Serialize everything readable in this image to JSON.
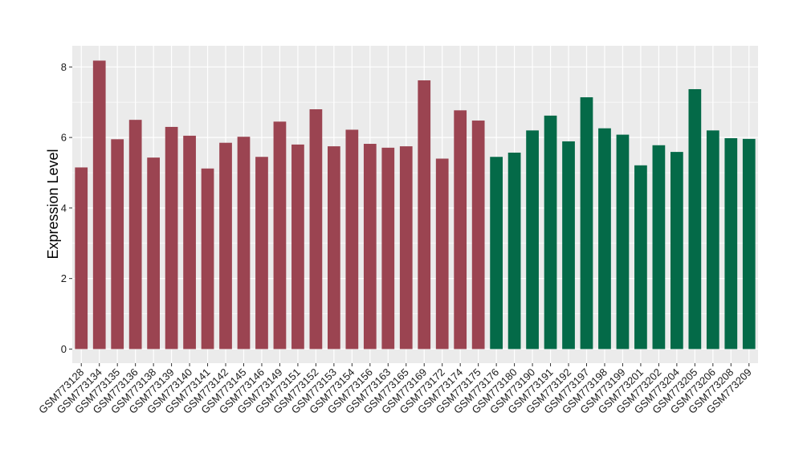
{
  "chart_data": {
    "type": "bar",
    "title": "",
    "xlabel": "",
    "ylabel": "Expression Level",
    "ylim": [
      -0.4,
      8.6
    ],
    "yticks": [
      0,
      2,
      4,
      6,
      8
    ],
    "grid": true,
    "legend": "none",
    "panel_background": "#ebebeb",
    "grid_color": "#ffffff",
    "categories": [
      "GSM773128",
      "GSM773134",
      "GSM773135",
      "GSM773136",
      "GSM773138",
      "GSM773139",
      "GSM773140",
      "GSM773141",
      "GSM773142",
      "GSM773145",
      "GSM773146",
      "GSM773149",
      "GSM773151",
      "GSM773152",
      "GSM773153",
      "GSM773154",
      "GSM773156",
      "GSM773163",
      "GSM773165",
      "GSM773169",
      "GSM773172",
      "GSM773174",
      "GSM773175",
      "GSM773176",
      "GSM773180",
      "GSM773190",
      "GSM773191",
      "GSM773192",
      "GSM773197",
      "GSM773198",
      "GSM773199",
      "GSM773201",
      "GSM773202",
      "GSM773204",
      "GSM773205",
      "GSM773206",
      "GSM773208",
      "GSM773209"
    ],
    "values": [
      5.15,
      8.18,
      5.95,
      6.5,
      5.43,
      6.3,
      6.05,
      5.12,
      5.85,
      6.02,
      5.45,
      6.45,
      5.8,
      6.8,
      5.75,
      6.22,
      5.82,
      5.71,
      5.75,
      7.62,
      5.4,
      6.77,
      6.48,
      5.45,
      5.57,
      6.2,
      6.62,
      5.89,
      7.14,
      6.26,
      6.08,
      5.21,
      5.78,
      5.59,
      7.37,
      6.2,
      5.98,
      5.96
    ],
    "bar_colors": [
      "#9b4451",
      "#9b4451",
      "#9b4451",
      "#9b4451",
      "#9b4451",
      "#9b4451",
      "#9b4451",
      "#9b4451",
      "#9b4451",
      "#9b4451",
      "#9b4451",
      "#9b4451",
      "#9b4451",
      "#9b4451",
      "#9b4451",
      "#9b4451",
      "#9b4451",
      "#9b4451",
      "#9b4451",
      "#9b4451",
      "#9b4451",
      "#9b4451",
      "#9b4451",
      "#046a48",
      "#046a48",
      "#046a48",
      "#046a48",
      "#046a48",
      "#046a48",
      "#046a48",
      "#046a48",
      "#046a48",
      "#046a48",
      "#046a48",
      "#046a48",
      "#046a48",
      "#046a48",
      "#046a48"
    ]
  }
}
